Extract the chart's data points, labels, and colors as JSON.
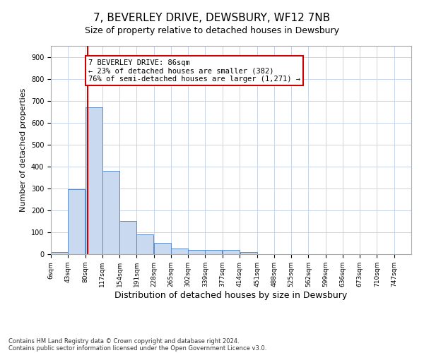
{
  "title": "7, BEVERLEY DRIVE, DEWSBURY, WF12 7NB",
  "subtitle": "Size of property relative to detached houses in Dewsbury",
  "xlabel": "Distribution of detached houses by size in Dewsbury",
  "ylabel": "Number of detached properties",
  "bar_bins": [
    6,
    43,
    80,
    117,
    154,
    191,
    228,
    265,
    302,
    339,
    377,
    414,
    451,
    488,
    525,
    562,
    599,
    636,
    673,
    710,
    747
  ],
  "bar_heights": [
    10,
    295,
    670,
    380,
    150,
    90,
    50,
    25,
    20,
    20,
    18,
    10,
    0,
    0,
    0,
    0,
    0,
    0,
    0,
    0
  ],
  "bar_color": "#c9d9f0",
  "bar_edgecolor": "#5a8ac6",
  "property_line_x": 86,
  "property_line_color": "#cc0000",
  "annotation_text": "7 BEVERLEY DRIVE: 86sqm\n← 23% of detached houses are smaller (382)\n76% of semi-detached houses are larger (1,271) →",
  "annotation_box_color": "#ffffff",
  "annotation_box_edgecolor": "#cc0000",
  "ylim": [
    0,
    950
  ],
  "yticks": [
    0,
    100,
    200,
    300,
    400,
    500,
    600,
    700,
    800,
    900
  ],
  "footnote_line1": "Contains HM Land Registry data © Crown copyright and database right 2024.",
  "footnote_line2": "Contains public sector information licensed under the Open Government Licence v3.0.",
  "background_color": "#ffffff",
  "grid_color": "#c8d4e8",
  "title_fontsize": 11,
  "subtitle_fontsize": 9,
  "xlabel_fontsize": 9,
  "ylabel_fontsize": 8,
  "tick_labels": [
    "6sqm",
    "43sqm",
    "80sqm",
    "117sqm",
    "154sqm",
    "191sqm",
    "228sqm",
    "265sqm",
    "302sqm",
    "339sqm",
    "377sqm",
    "414sqm",
    "451sqm",
    "488sqm",
    "525sqm",
    "562sqm",
    "599sqm",
    "636sqm",
    "673sqm",
    "710sqm",
    "747sqm"
  ]
}
